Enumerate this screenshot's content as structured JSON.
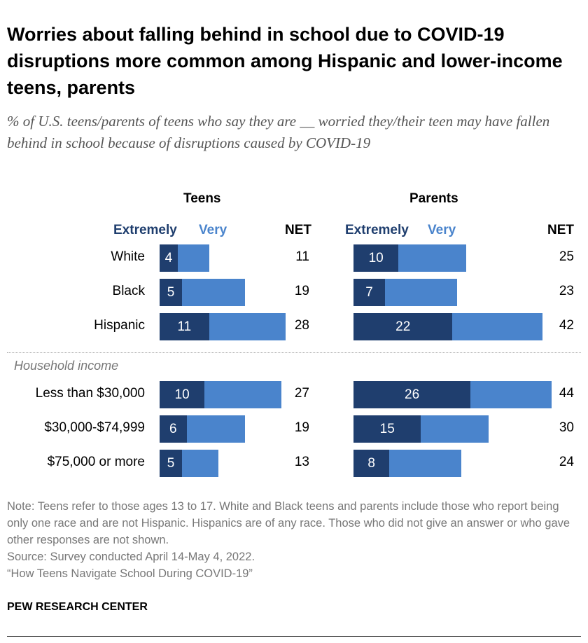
{
  "title": "Worries about falling behind in school due to COVID-19 disruptions more common among Hispanic and lower-income teens, parents",
  "subtitle": "% of U.S. teens/parents of teens who say they are __ worried they/their teen may have fallen behind in school because of disruptions caused by COVID-19",
  "chart_data": {
    "type": "bar",
    "orientation": "horizontal-stacked",
    "panels": [
      "Teens",
      "Parents"
    ],
    "legend": {
      "extremely": "Extremely",
      "very": "Very",
      "net": "NET"
    },
    "colors": {
      "extremely": "#1f3e6e",
      "very": "#4a84cc"
    },
    "group_label": "Household income",
    "categories": [
      "White",
      "Black",
      "Hispanic",
      "Less than $30,000",
      "$30,000-$74,999",
      "$75,000 or more"
    ],
    "teens": {
      "extremely": [
        4,
        5,
        11,
        10,
        6,
        5
      ],
      "very": [
        7,
        14,
        17,
        17,
        13,
        8
      ],
      "net": [
        11,
        19,
        28,
        27,
        19,
        13
      ]
    },
    "parents": {
      "extremely": [
        10,
        7,
        22,
        26,
        15,
        8
      ],
      "very": [
        15,
        16,
        20,
        18,
        15,
        16
      ],
      "net": [
        25,
        23,
        42,
        44,
        30,
        24
      ]
    }
  },
  "notes": [
    "Note: Teens refer to those ages 13 to 17. White and Black teens and parents include those who report being only one race and are not Hispanic. Hispanics are of any race. Those who did not give an answer or who gave other responses are not shown.",
    "Source: Survey conducted April 14-May 4, 2022.",
    "“How Teens Navigate School During COVID-19”"
  ],
  "source_org": "PEW RESEARCH CENTER"
}
